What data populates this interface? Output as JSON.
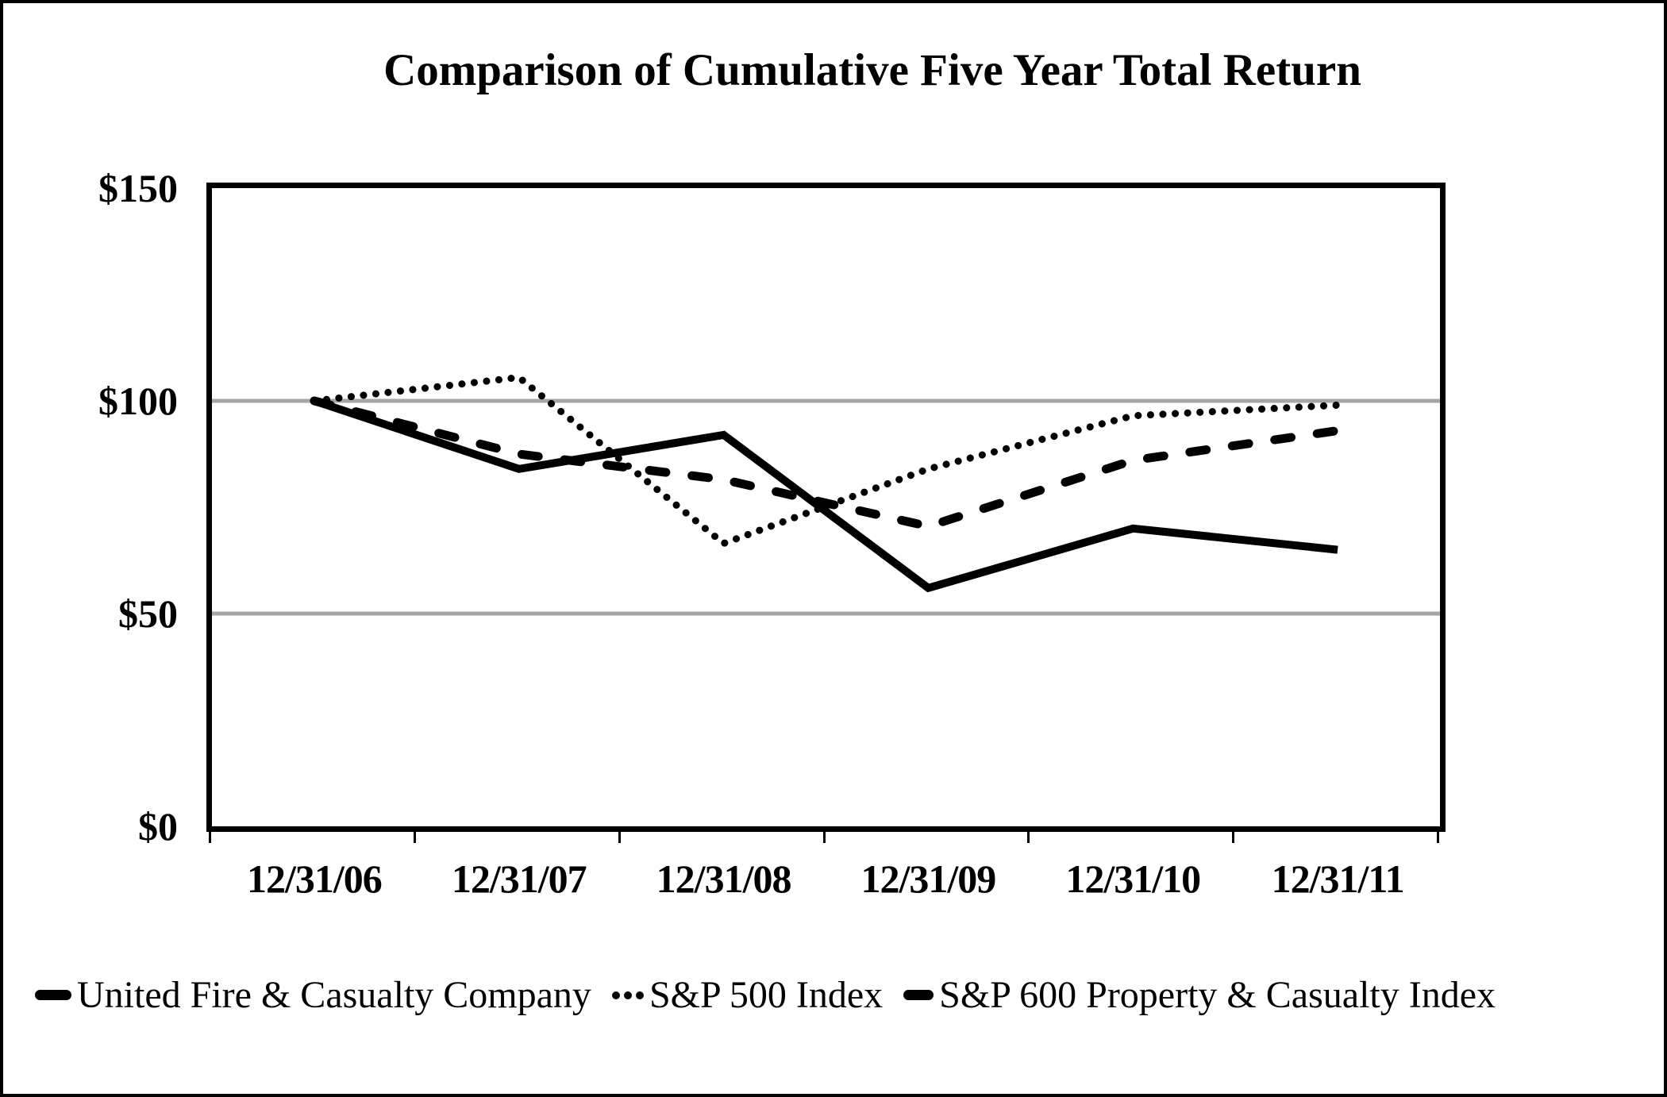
{
  "chart_data": {
    "type": "line",
    "title": "Comparison of Cumulative Five Year Total Return",
    "categories": [
      "12/31/06",
      "12/31/07",
      "12/31/08",
      "12/31/09",
      "12/31/10",
      "12/31/11"
    ],
    "series": [
      {
        "name": "United Fire & Casualty Company",
        "line_style": "solid",
        "values": [
          100,
          84,
          92,
          56,
          70,
          65
        ]
      },
      {
        "name": "S&P 500 Index",
        "line_style": "dotted",
        "values": [
          100,
          105.5,
          66.5,
          84,
          96.5,
          99
        ]
      },
      {
        "name": "S&P 600 Property & Casualty Index",
        "line_style": "dashed",
        "values": [
          100,
          87.5,
          81.5,
          70.5,
          86,
          93
        ]
      }
    ],
    "xlabel": "",
    "ylabel": "",
    "ylim": [
      0,
      150
    ],
    "yticks": [
      {
        "value": 150,
        "label": "$150"
      },
      {
        "value": 100,
        "label": "$100"
      },
      {
        "value": 50,
        "label": "$50"
      },
      {
        "value": 0,
        "label": "$0"
      }
    ],
    "gridlines_at": [
      100,
      50
    ],
    "grid_on": true,
    "grid_color": "#a6a6a6",
    "line_color": "#000000",
    "legend_position": "bottom"
  }
}
